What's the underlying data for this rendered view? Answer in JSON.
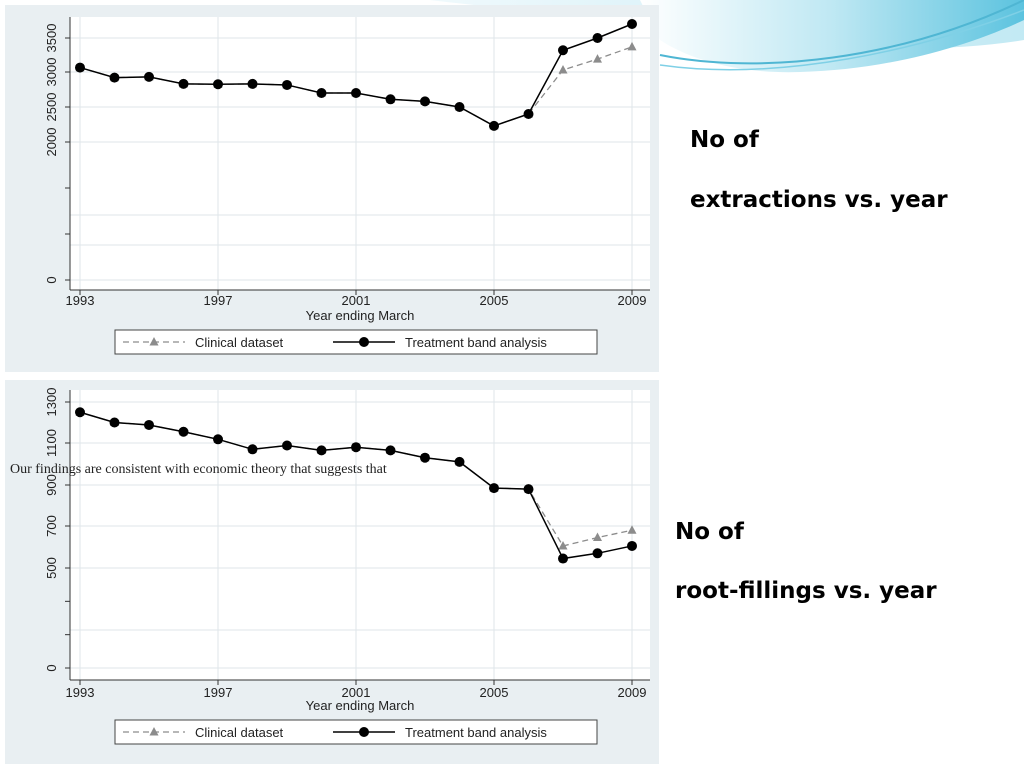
{
  "slide": {
    "overlay_text": "Our findings are consistent with economic theory that suggests that",
    "colors": {
      "panel_bg": "#e9eff2",
      "accent_swoosh": "#7fd0e6"
    }
  },
  "captions": {
    "extractions_line1": "No of",
    "extractions_line2": "extractions vs. year",
    "rootfill_line1": "No of",
    "rootfill_line2": "root-fillings vs. year"
  },
  "chart_data": [
    {
      "type": "line",
      "xlabel": "Year ending March",
      "x_ticks": [
        "1993",
        "1997",
        "2001",
        "2005",
        "2009"
      ],
      "y_tick_labels": [
        "0",
        "2000",
        "2500",
        "3000",
        "3500"
      ],
      "x": [
        1993,
        1994,
        1995,
        1996,
        1997,
        1998,
        1999,
        2000,
        2001,
        2002,
        2003,
        2004,
        2005,
        2006,
        2007,
        2008,
        2009
      ],
      "series": [
        {
          "name": "Clinical dataset",
          "style": "dashed-triangle",
          "color": "#8c8c8c",
          "values": [
            3065,
            2920,
            2930,
            2830,
            2825,
            2830,
            2815,
            2700,
            2700,
            2610,
            2580,
            2500,
            2230,
            2400,
            3030,
            3190,
            3370
          ]
        },
        {
          "name": "Treatment band analysis",
          "style": "solid-circle",
          "color": "#000000",
          "values": [
            3065,
            2920,
            2930,
            2830,
            2825,
            2830,
            2815,
            2700,
            2700,
            2610,
            2580,
            2500,
            2230,
            2400,
            3320,
            3500,
            3710
          ]
        }
      ],
      "legend_position": "bottom",
      "grid": true
    },
    {
      "type": "line",
      "xlabel": "Year ending March",
      "x_ticks": [
        "1993",
        "1997",
        "2001",
        "2005",
        "2009"
      ],
      "y_tick_labels": [
        "0",
        "500",
        "700",
        "900",
        "1100",
        "1300"
      ],
      "x": [
        1993,
        1994,
        1995,
        1996,
        1997,
        1998,
        1999,
        2000,
        2001,
        2002,
        2003,
        2004,
        2005,
        2006,
        2007,
        2008,
        2009
      ],
      "series": [
        {
          "name": "Clinical dataset",
          "style": "dashed-triangle",
          "color": "#8c8c8c",
          "values": [
            1250,
            1200,
            1188,
            1155,
            1118,
            1070,
            1088,
            1065,
            1080,
            1065,
            1030,
            1010,
            885,
            880,
            605,
            645,
            680
          ]
        },
        {
          "name": "Treatment band analysis",
          "style": "solid-circle",
          "color": "#000000",
          "values": [
            1250,
            1200,
            1188,
            1155,
            1118,
            1070,
            1088,
            1065,
            1080,
            1065,
            1030,
            1010,
            885,
            880,
            545,
            570,
            605
          ]
        }
      ],
      "legend_position": "bottom",
      "grid": true
    }
  ]
}
